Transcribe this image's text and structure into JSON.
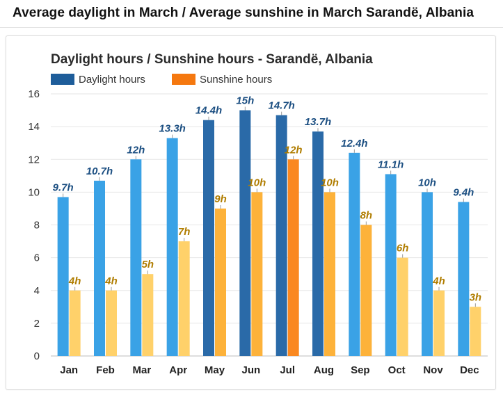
{
  "page": {
    "title": "Average daylight in March / Average sunshine in March Sarandë, Albania"
  },
  "colors": {
    "daylight_light": "#3aa2e6",
    "daylight_dark": "#2a6aa8",
    "sunshine_light": "#ffd16a",
    "sunshine_mid": "#fdb23a",
    "sunshine_dark": "#fa8820",
    "legend_daylight": "#1e5d9a",
    "legend_sunshine": "#f5780f",
    "label_daylight": "#1c4f82",
    "label_sunshine": "#b07d00",
    "grid": "#e6e6e6"
  },
  "chart_data": {
    "type": "bar",
    "title": "Daylight hours / Sunshine hours - Sarandë, Albania",
    "legend_position": "top-left",
    "grid": true,
    "categories": [
      "Jan",
      "Feb",
      "Mar",
      "Apr",
      "May",
      "Jun",
      "Jul",
      "Aug",
      "Sep",
      "Oct",
      "Nov",
      "Dec"
    ],
    "ylim": [
      0,
      16
    ],
    "yticks": [
      0,
      2,
      4,
      6,
      8,
      10,
      12,
      14,
      16
    ],
    "series": [
      {
        "name": "Daylight hours",
        "values": [
          9.7,
          10.7,
          12,
          13.3,
          14.4,
          15,
          14.7,
          13.7,
          12.4,
          11.1,
          10,
          9.4
        ],
        "labels": [
          "9.7h",
          "10.7h",
          "12h",
          "13.3h",
          "14.4h",
          "15h",
          "14.7h",
          "13.7h",
          "12.4h",
          "11.1h",
          "10h",
          "9.4h"
        ]
      },
      {
        "name": "Sunshine hours",
        "values": [
          4,
          4,
          5,
          7,
          9,
          10,
          12,
          10,
          8,
          6,
          4,
          3
        ],
        "labels": [
          "4h",
          "4h",
          "5h",
          "7h",
          "9h",
          "10h",
          "12h",
          "10h",
          "8h",
          "6h",
          "4h",
          "3h"
        ]
      }
    ]
  }
}
